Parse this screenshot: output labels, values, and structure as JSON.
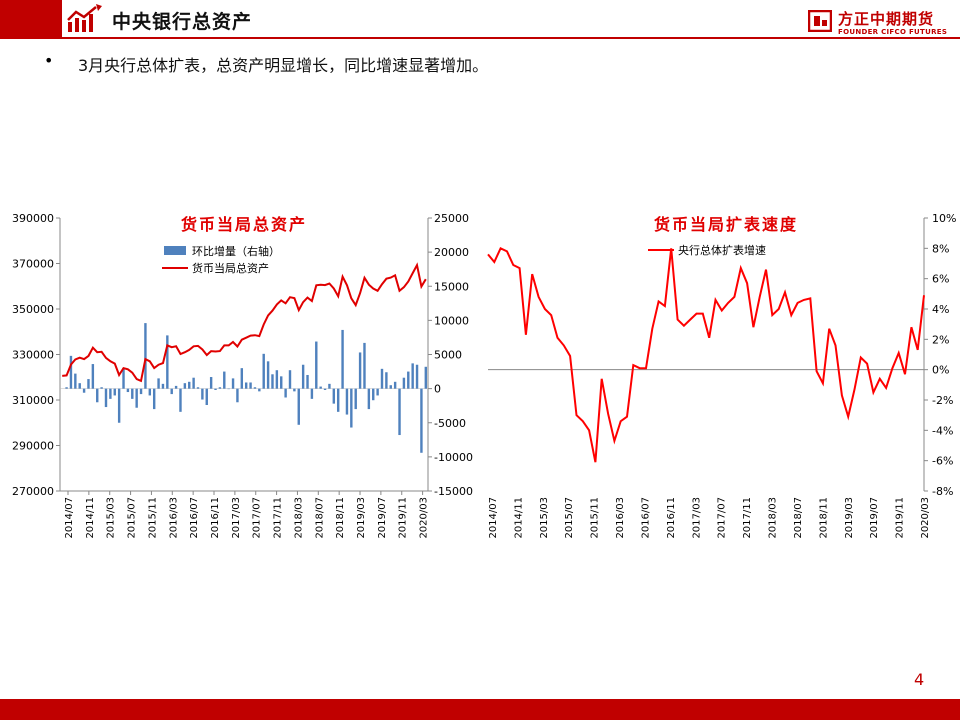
{
  "header": {
    "title": "中央银行总资产",
    "logo_cn": "方正中期期货",
    "logo_en": "FOUNDER CIFCO FUTURES",
    "accent": "#c00000"
  },
  "bullet": {
    "marker": "•",
    "text": "3月央行总体扩表，总资产明显增长，同比增速显著增加。"
  },
  "page_number": "4",
  "chart_data": [
    {
      "type": "bar+line",
      "title": "货币当局总资产",
      "legend": [
        "环比增量（右轴）",
        "货币当局总资产"
      ],
      "legend_placement": "top-center",
      "bar_color": "#4f81bd",
      "line_color": "#e00000",
      "x_tick_labels": [
        "2014/07",
        "2014/11",
        "2015/03",
        "2015/07",
        "2015/11",
        "2016/03",
        "2016/07",
        "2016/11",
        "2017/03",
        "2017/07",
        "2017/11",
        "2018/03",
        "2018/07",
        "2018/11",
        "2019/03",
        "2019/07",
        "2019/11",
        "2020/03"
      ],
      "ylim_left": [
        270000,
        390000
      ],
      "yticks_left": [
        "390000",
        "370000",
        "350000",
        "330000",
        "310000",
        "290000",
        "270000"
      ],
      "ylim_right": [
        -15000,
        25000
      ],
      "yticks_right": [
        "25000",
        "20000",
        "15000",
        "10000",
        "5000",
        "0",
        "-5000",
        "-10000",
        "-15000"
      ],
      "series_line": [
        320600,
        320800,
        325600,
        327800,
        328600,
        328000,
        329400,
        333000,
        331000,
        331200,
        328500,
        327000,
        326000,
        321000,
        324000,
        323500,
        322000,
        319200,
        318400,
        328000,
        327000,
        324000,
        325500,
        326200,
        334000,
        333200,
        333600,
        330200,
        331000,
        332000,
        333600,
        333800,
        332200,
        329800,
        331500,
        331300,
        331500,
        334000,
        334000,
        335500,
        333500,
        336500,
        337400,
        338300,
        338500,
        338100,
        343200,
        347200,
        349300,
        352000,
        353800,
        352500,
        355200,
        354800,
        349500,
        353000,
        355000,
        353500,
        360400,
        360700,
        360500,
        361200,
        359000,
        355600,
        364200,
        360400,
        354700,
        351700,
        357000,
        363700,
        360700,
        359000,
        358000,
        360900,
        363300,
        363800,
        364800,
        358000,
        359600,
        362100,
        365800,
        369300,
        359900,
        363100
      ]
    },
    {
      "type": "line",
      "title": "货币当局扩表速度",
      "legend": [
        "央行总体扩表增速"
      ],
      "legend_placement": "top-center",
      "line_color": "#ff0000",
      "x_tick_labels": [
        "2014/07",
        "2014/11",
        "2015/03",
        "2015/07",
        "2015/11",
        "2016/03",
        "2016/07",
        "2016/11",
        "2017/03",
        "2017/07",
        "2017/11",
        "2018/03",
        "2018/07",
        "2018/11",
        "2019/03",
        "2019/07",
        "2019/11",
        "2020/03"
      ],
      "ylim": [
        -8,
        10
      ],
      "yticks": [
        "10%",
        "8%",
        "6%",
        "4%",
        "2%",
        "0%",
        "-2%",
        "-4%",
        "-6%",
        "-8%"
      ],
      "values": [
        7.6,
        7.1,
        8.0,
        7.8,
        6.9,
        6.7,
        2.3,
        6.3,
        4.8,
        4.0,
        3.6,
        2.1,
        1.6,
        0.9,
        -3.0,
        -3.4,
        -4.0,
        -6.1,
        -0.6,
        -2.9,
        -4.7,
        -3.4,
        -3.1,
        0.3,
        0.1,
        0.1,
        2.7,
        4.5,
        4.2,
        8.0,
        3.3,
        2.9,
        3.3,
        3.7,
        3.7,
        2.1,
        4.6,
        3.9,
        4.4,
        4.8,
        6.7,
        5.7,
        2.8,
        4.8,
        6.6,
        3.6,
        4.0,
        5.1,
        3.6,
        4.4,
        4.6,
        4.7,
        -0.1,
        -0.9,
        2.7,
        1.6,
        -1.7,
        -3.1,
        -1.3,
        0.8,
        0.4,
        -1.5,
        -0.6,
        -1.2,
        0.1,
        1.1,
        -0.3,
        2.8,
        1.3,
        4.9
      ]
    }
  ]
}
